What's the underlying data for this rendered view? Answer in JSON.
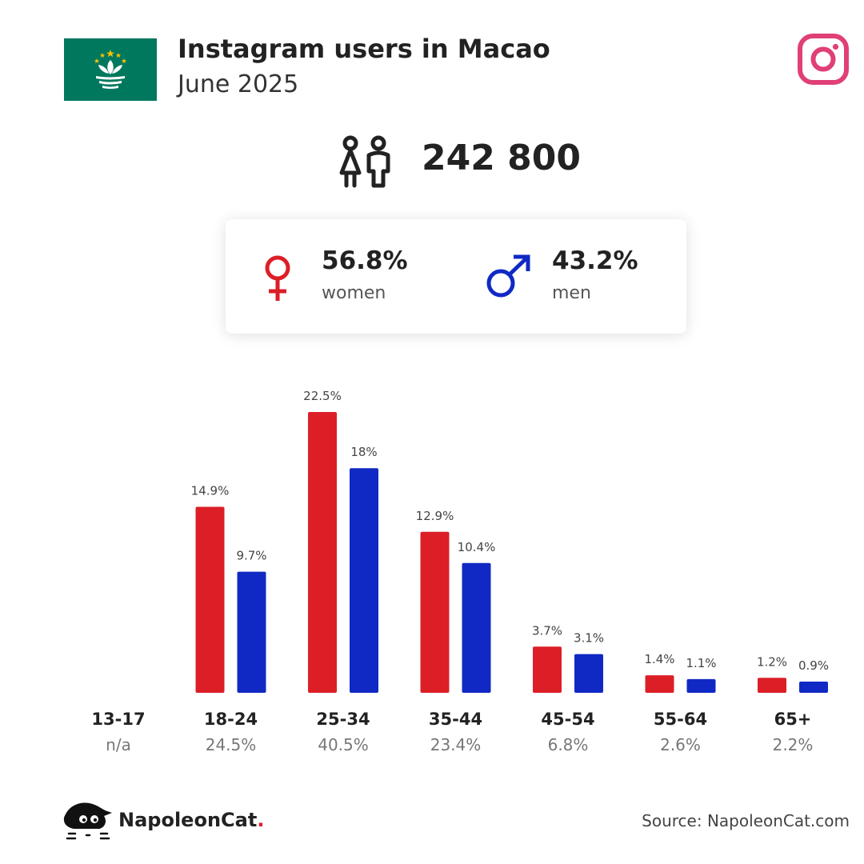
{
  "header": {
    "title": "Instagram users in Macao",
    "subtitle": "June 2025",
    "flag_icon": "macao-flag-icon",
    "platform_icon": "instagram-icon"
  },
  "total": {
    "icon": "people-icon",
    "value": "242 800"
  },
  "gender": {
    "women": {
      "icon": "female-symbol-icon",
      "percent": "56.8%",
      "label": "women",
      "color": "#dc1f27"
    },
    "men": {
      "icon": "male-symbol-icon",
      "percent": "43.2%",
      "label": "men",
      "color": "#1029c4"
    }
  },
  "chart_data": {
    "type": "bar",
    "categories": [
      "13-17",
      "18-24",
      "25-34",
      "35-44",
      "45-54",
      "55-64",
      "65+"
    ],
    "category_totals": [
      "n/a",
      "24.5%",
      "40.5%",
      "23.4%",
      "6.8%",
      "2.6%",
      "2.2%"
    ],
    "series": [
      {
        "values": [
          null,
          14.9,
          22.5,
          12.9,
          3.7,
          1.4,
          1.2
        ],
        "labels": [
          "",
          "14.9%",
          "22.5%",
          "12.9%",
          "3.7%",
          "1.4%",
          "1.2%"
        ],
        "color": "#dc1f27"
      },
      {
        "values": [
          null,
          9.7,
          18,
          10.4,
          3.1,
          1.1,
          0.9
        ],
        "labels": [
          "",
          "9.7%",
          "18%",
          "10.4%",
          "3.1%",
          "1.1%",
          "0.9%"
        ],
        "color": "#1029c4"
      }
    ],
    "ylim": [
      0,
      22.5
    ],
    "grid": false,
    "legend": "none"
  },
  "footer": {
    "brand": "NapoleonCat",
    "brand_dot": ".",
    "brand_icon": "napoleoncat-logo-icon",
    "source": "Source: NapoleonCat.com"
  }
}
